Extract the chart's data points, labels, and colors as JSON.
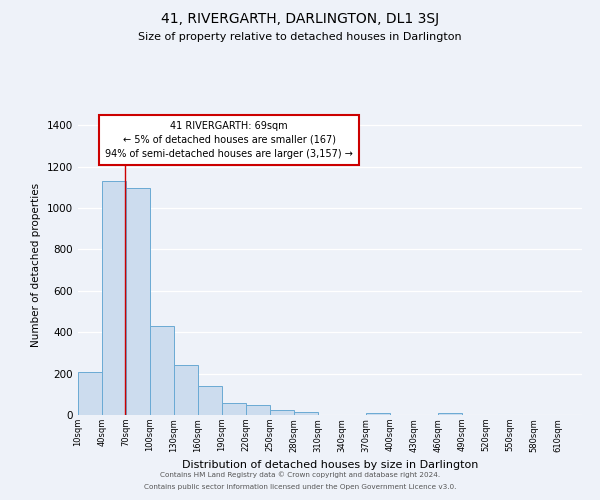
{
  "title": "41, RIVERGARTH, DARLINGTON, DL1 3SJ",
  "subtitle": "Size of property relative to detached houses in Darlington",
  "xlabel": "Distribution of detached houses by size in Darlington",
  "ylabel": "Number of detached properties",
  "bar_labels": [
    "10sqm",
    "40sqm",
    "70sqm",
    "100sqm",
    "130sqm",
    "160sqm",
    "190sqm",
    "220sqm",
    "250sqm",
    "280sqm",
    "310sqm",
    "340sqm",
    "370sqm",
    "400sqm",
    "430sqm",
    "460sqm",
    "490sqm",
    "520sqm",
    "550sqm",
    "580sqm",
    "610sqm"
  ],
  "bar_values": [
    210,
    1130,
    1095,
    430,
    240,
    140,
    60,
    47,
    22,
    16,
    0,
    0,
    10,
    0,
    0,
    10,
    0,
    0,
    0,
    0,
    0
  ],
  "bar_color": "#ccdcee",
  "bar_edge_color": "#6aaad4",
  "ylim": [
    0,
    1450
  ],
  "yticks": [
    0,
    200,
    400,
    600,
    800,
    1000,
    1200,
    1400
  ],
  "property_line_x": 69,
  "annotation_title": "41 RIVERGARTH: 69sqm",
  "annotation_line1": "← 5% of detached houses are smaller (167)",
  "annotation_line2": "94% of semi-detached houses are larger (3,157) →",
  "annotation_box_color": "#ffffff",
  "annotation_box_edge": "#cc0000",
  "red_line_color": "#cc0000",
  "footer1": "Contains HM Land Registry data © Crown copyright and database right 2024.",
  "footer2": "Contains public sector information licensed under the Open Government Licence v3.0.",
  "background_color": "#eef2f9",
  "grid_color": "#ffffff",
  "bin_width": 30,
  "title_fontsize": 10,
  "subtitle_fontsize": 8.5
}
